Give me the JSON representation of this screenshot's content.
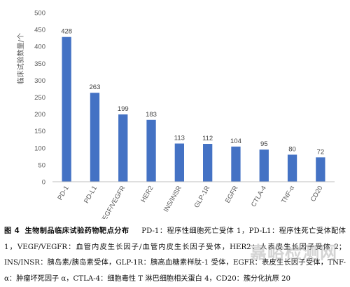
{
  "chart_data": {
    "type": "bar",
    "categories": [
      "PD-1",
      "PD-L1",
      "VEGF/VEGFR",
      "HER2",
      "INS/INSR",
      "GLP-1R",
      "EGFR",
      "CTLA-4",
      "TNF-α",
      "CD20"
    ],
    "values": [
      428,
      263,
      199,
      183,
      113,
      112,
      104,
      95,
      80,
      72
    ],
    "ylabel": "临床试验数量/个",
    "ylim": [
      0,
      500
    ],
    "yticks": [
      0,
      50,
      100,
      150,
      200,
      250,
      300,
      350,
      400,
      450,
      500
    ],
    "grid": false,
    "colors": {
      "bar": "#4472C4",
      "axis": "#bfbfbf",
      "tick_text": "#595959",
      "label_text": "#404040"
    }
  },
  "caption": {
    "fig_label": "图 4",
    "fig_title": "生物制品临床试验药物靶点分布",
    "body": "PD-1：程序性细胞死亡受体 1，PD-L1：程序性死亡受体配体 1，VEGF/VEGFR：血管内皮生长因子/血管内皮生长因子受体，HER2：人表皮生长因子受体 2；INS/INSR：胰岛素/胰岛素受体，GLP-1R：胰高血糖素样肽-1 受体，EGFR：表皮生长因子受体，TNF-α：肿瘤坏死因子 α，CTLA-4：细胞毒性 T 淋巴细胞相关蛋白 4，CD20：簇分化抗原 20"
  },
  "watermark": "嘉峪检测网"
}
